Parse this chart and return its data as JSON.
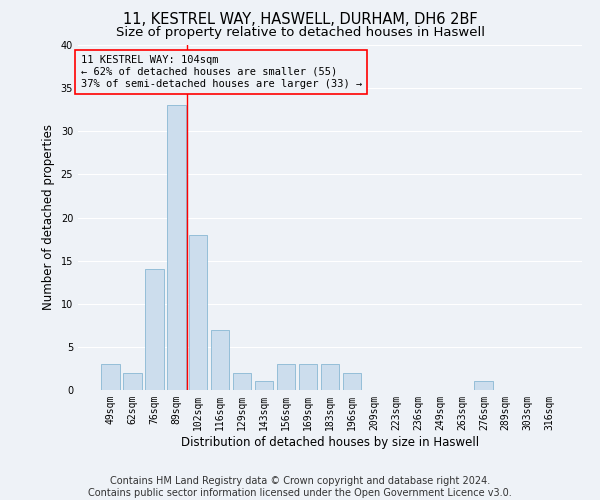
{
  "title1": "11, KESTREL WAY, HASWELL, DURHAM, DH6 2BF",
  "title2": "Size of property relative to detached houses in Haswell",
  "xlabel": "Distribution of detached houses by size in Haswell",
  "ylabel": "Number of detached properties",
  "categories": [
    "49sqm",
    "62sqm",
    "76sqm",
    "89sqm",
    "102sqm",
    "116sqm",
    "129sqm",
    "143sqm",
    "156sqm",
    "169sqm",
    "183sqm",
    "196sqm",
    "209sqm",
    "223sqm",
    "236sqm",
    "249sqm",
    "263sqm",
    "276sqm",
    "289sqm",
    "303sqm",
    "316sqm"
  ],
  "values": [
    3,
    2,
    14,
    33,
    18,
    7,
    2,
    1,
    3,
    3,
    3,
    2,
    0,
    0,
    0,
    0,
    0,
    1,
    0,
    0,
    0
  ],
  "bar_color": "#ccdded",
  "bar_edge_color": "#89b8d4",
  "ylim": [
    0,
    40
  ],
  "yticks": [
    0,
    5,
    10,
    15,
    20,
    25,
    30,
    35,
    40
  ],
  "red_line_x": 3.5,
  "annotation_line1": "11 KESTREL WAY: 104sqm",
  "annotation_line2": "← 62% of detached houses are smaller (55)",
  "annotation_line3": "37% of semi-detached houses are larger (33) →",
  "footer1": "Contains HM Land Registry data © Crown copyright and database right 2024.",
  "footer2": "Contains public sector information licensed under the Open Government Licence v3.0.",
  "background_color": "#eef2f7",
  "grid_color": "#ffffff",
  "title_fontsize": 10.5,
  "subtitle_fontsize": 9.5,
  "axis_label_fontsize": 8.5,
  "tick_fontsize": 7,
  "annotation_fontsize": 7.5,
  "footer_fontsize": 7
}
